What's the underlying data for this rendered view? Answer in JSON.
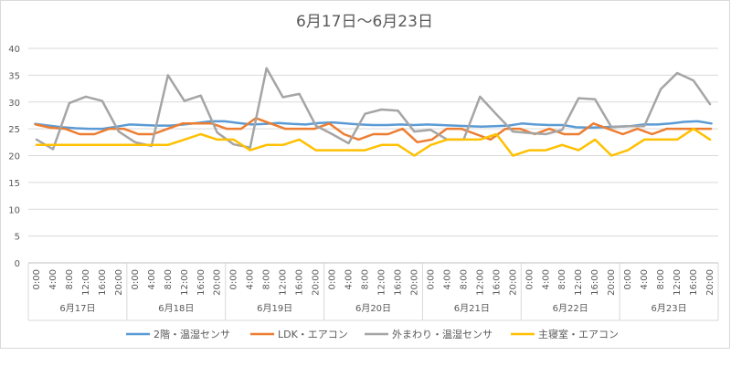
{
  "chart_data": {
    "type": "line",
    "title": "6月17日～6月23日",
    "ylim": [
      0,
      40
    ],
    "y_ticks": [
      0,
      5,
      10,
      15,
      20,
      25,
      30,
      35,
      40
    ],
    "grid": true,
    "legend_position": "bottom",
    "hour_ticks": [
      "0:00",
      "4:00",
      "8:00",
      "12:00",
      "16:00",
      "20:00"
    ],
    "days": [
      "6月17日",
      "6月18日",
      "6月19日",
      "6月20日",
      "6月21日",
      "6月22日",
      "6月23日"
    ],
    "series": [
      {
        "name": "2階・温湿センサ",
        "color": "#5b9bd5",
        "values": [
          25.9,
          25.6,
          25.3,
          25.1,
          25.0,
          25.0,
          25.4,
          25.8,
          25.7,
          25.6,
          25.6,
          25.8,
          26.1,
          26.4,
          26.4,
          26.1,
          25.8,
          25.9,
          26.1,
          25.9,
          25.8,
          26.1,
          26.2,
          26.0,
          25.8,
          25.7,
          25.7,
          25.8,
          25.7,
          25.8,
          25.7,
          25.6,
          25.5,
          25.4,
          25.5,
          25.6,
          26.0,
          25.8,
          25.7,
          25.7,
          25.3,
          25.2,
          25.3,
          25.4,
          25.5,
          25.8,
          25.8,
          26.0,
          26.3,
          26.4,
          26.0
        ]
      },
      {
        "name": "LDK・エアコン",
        "color": "#ed7d31",
        "values": [
          25.8,
          25.2,
          25.0,
          24.0,
          24.0,
          25.0,
          25.0,
          24.0,
          24.0,
          25.0,
          26.0,
          26.0,
          26.0,
          25.0,
          25.0,
          27.0,
          26.0,
          25.0,
          25.0,
          25.0,
          26.0,
          24.0,
          23.0,
          24.0,
          24.0,
          25.0,
          22.5,
          23.0,
          25.0,
          25.0,
          24.0,
          23.0,
          25.0,
          25.0,
          24.0,
          25.0,
          24.0,
          24.0,
          26.0,
          25.0,
          24.0,
          25.0,
          24.0,
          25.0,
          25.0,
          25.0,
          25.0
        ]
      },
      {
        "name": "外まわり・温湿センサ",
        "color": "#a5a5a5",
        "values": [
          23.0,
          21.2,
          29.8,
          31.0,
          30.2,
          24.5,
          22.5,
          21.8,
          35.0,
          30.2,
          31.2,
          24.3,
          22.1,
          21.5,
          36.3,
          30.9,
          31.5,
          25.6,
          24.0,
          22.3,
          27.8,
          28.6,
          28.4,
          24.5,
          24.8,
          23.0,
          23.0,
          31.0,
          27.7,
          24.5,
          24.2,
          24.0,
          24.8,
          30.7,
          30.5,
          25.3,
          25.5,
          25.5,
          32.4,
          35.4,
          34.0,
          29.6
        ]
      },
      {
        "name": "主寝室・エアコン",
        "color": "#ffc000",
        "values": [
          22.0,
          22.0,
          22.0,
          22.0,
          22.0,
          22.0,
          22.0,
          22.0,
          22.0,
          23.0,
          24.0,
          23.0,
          23.0,
          21.0,
          22.0,
          22.0,
          23.0,
          21.0,
          21.0,
          21.0,
          21.0,
          22.0,
          22.0,
          20.0,
          22.0,
          23.0,
          23.0,
          23.0,
          24.0,
          20.0,
          21.0,
          21.0,
          22.0,
          21.0,
          23.0,
          20.0,
          21.0,
          23.0,
          23.0,
          23.0,
          25.0,
          23.0
        ]
      }
    ]
  }
}
